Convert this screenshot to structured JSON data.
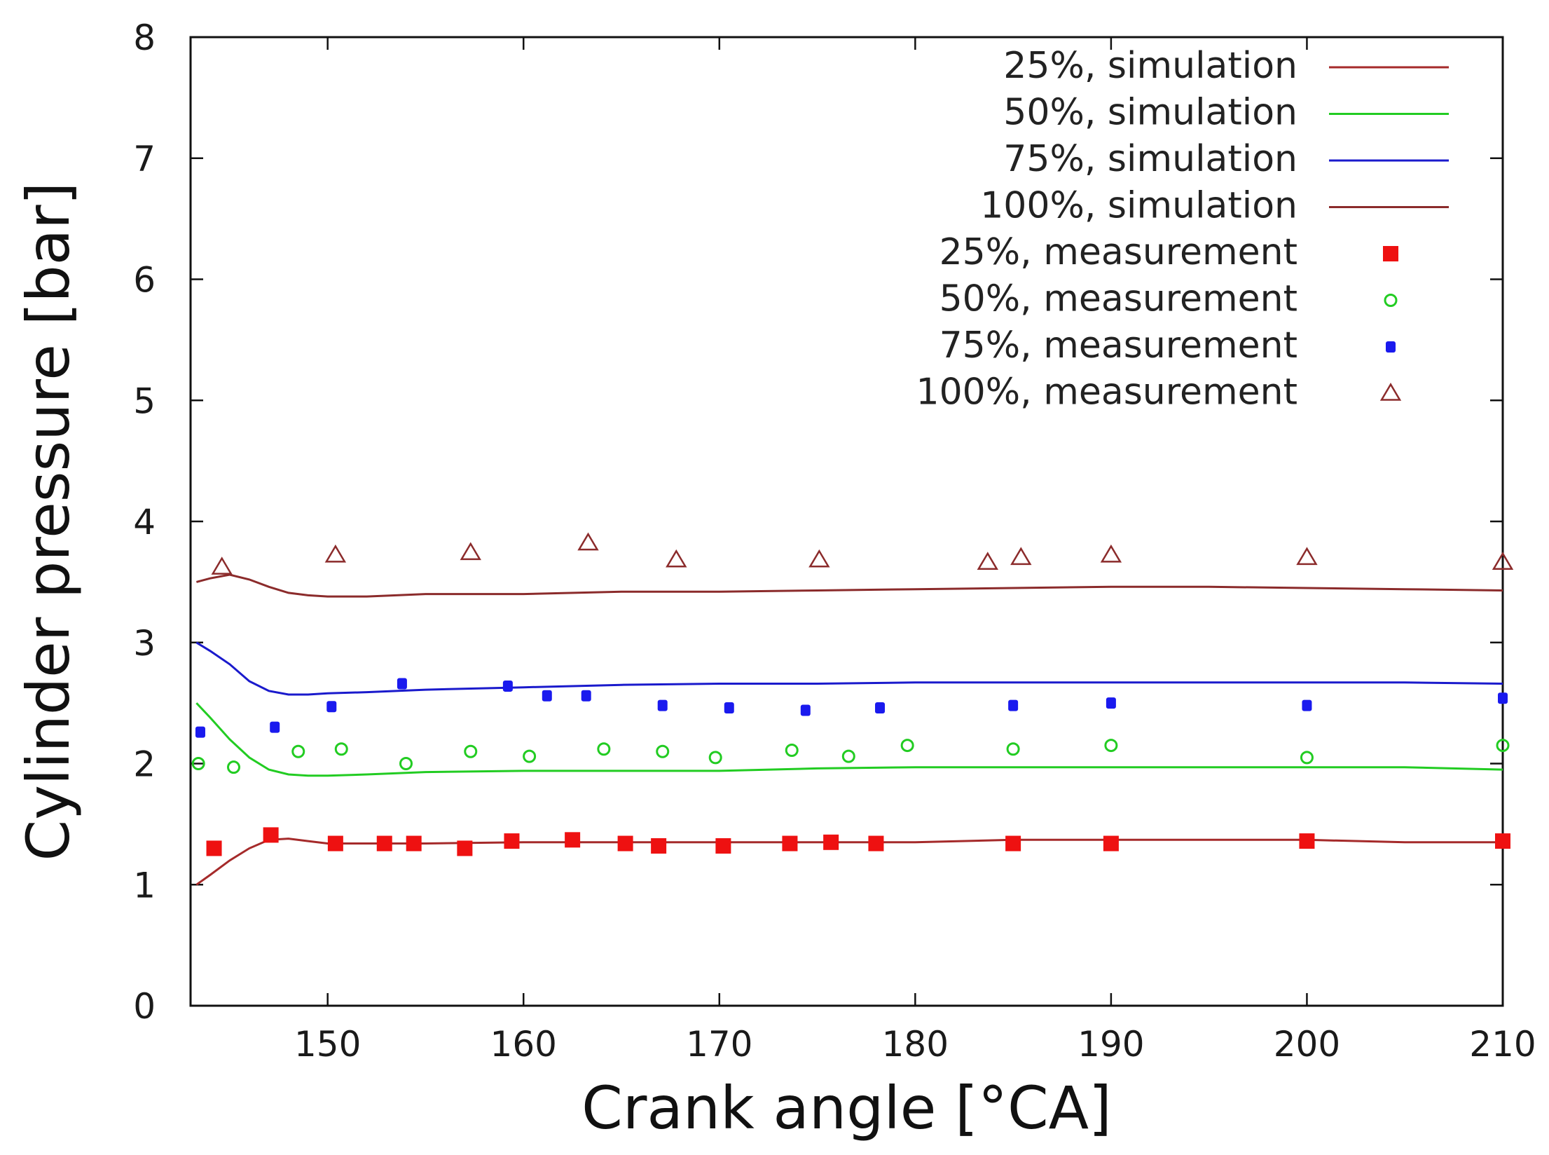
{
  "chart_data": {
    "type": "line",
    "title": "",
    "xlabel": "Crank angle [°CA]",
    "ylabel": "Cylinder pressure [bar]",
    "xlim": [
      143,
      210
    ],
    "ylim": [
      0,
      8
    ],
    "xticks": [
      150,
      160,
      170,
      180,
      190,
      200,
      210
    ],
    "yticks": [
      0,
      1,
      2,
      3,
      4,
      5,
      6,
      7,
      8
    ],
    "grid": false,
    "legend_position": "top-right",
    "colors": {
      "load25": "#a52a2a",
      "load50": "#22cc22",
      "load75": "#1a1acc",
      "load100": "#8b2b2b",
      "meas25": "#ee1111",
      "meas50": "#22cc22",
      "meas75": "#1a1aee",
      "meas100": "#8b2b2b"
    },
    "series": [
      {
        "name": "25%, simulation",
        "kind": "line",
        "color_key": "load25",
        "x": [
          143.3,
          144,
          145,
          146,
          147,
          148,
          149,
          150,
          152,
          155,
          160,
          165,
          170,
          175,
          180,
          185,
          190,
          195,
          200,
          205,
          210
        ],
        "y": [
          1.0,
          1.08,
          1.2,
          1.3,
          1.37,
          1.38,
          1.36,
          1.34,
          1.34,
          1.34,
          1.35,
          1.35,
          1.35,
          1.35,
          1.35,
          1.37,
          1.37,
          1.37,
          1.37,
          1.35,
          1.35
        ]
      },
      {
        "name": "50%, simulation",
        "kind": "line",
        "color_key": "load50",
        "x": [
          143.3,
          144,
          145,
          146,
          147,
          148,
          149,
          150,
          152,
          155,
          160,
          165,
          170,
          175,
          180,
          185,
          190,
          195,
          200,
          205,
          210
        ],
        "y": [
          2.5,
          2.38,
          2.2,
          2.05,
          1.95,
          1.91,
          1.9,
          1.9,
          1.91,
          1.93,
          1.94,
          1.94,
          1.94,
          1.96,
          1.97,
          1.97,
          1.97,
          1.97,
          1.97,
          1.97,
          1.95
        ]
      },
      {
        "name": "75%, simulation",
        "kind": "line",
        "color_key": "load75",
        "x": [
          143.3,
          144,
          145,
          146,
          147,
          148,
          149,
          150,
          152,
          155,
          160,
          165,
          170,
          175,
          180,
          185,
          190,
          195,
          200,
          205,
          210
        ],
        "y": [
          3.0,
          2.93,
          2.82,
          2.68,
          2.6,
          2.57,
          2.57,
          2.58,
          2.59,
          2.61,
          2.63,
          2.65,
          2.66,
          2.66,
          2.67,
          2.67,
          2.67,
          2.67,
          2.67,
          2.67,
          2.66
        ]
      },
      {
        "name": "100%, simulation",
        "kind": "line",
        "color_key": "load100",
        "x": [
          143.3,
          144,
          145,
          146,
          147,
          148,
          149,
          150,
          152,
          155,
          160,
          165,
          170,
          175,
          180,
          185,
          190,
          195,
          200,
          205,
          210
        ],
        "y": [
          3.5,
          3.53,
          3.56,
          3.52,
          3.46,
          3.41,
          3.39,
          3.38,
          3.38,
          3.4,
          3.4,
          3.42,
          3.42,
          3.43,
          3.44,
          3.45,
          3.46,
          3.46,
          3.45,
          3.44,
          3.43
        ]
      },
      {
        "name": "25%, measurement",
        "kind": "square",
        "color_key": "meas25",
        "x": [
          144.2,
          147.1,
          150.4,
          152.9,
          154.4,
          157,
          159.4,
          162.5,
          165.2,
          166.9,
          170.2,
          173.6,
          175.7,
          178,
          185,
          190,
          200,
          210
        ],
        "y": [
          1.3,
          1.41,
          1.34,
          1.34,
          1.34,
          1.3,
          1.36,
          1.37,
          1.34,
          1.32,
          1.32,
          1.34,
          1.35,
          1.34,
          1.34,
          1.34,
          1.36,
          1.36
        ]
      },
      {
        "name": "50%, measurement",
        "kind": "circle",
        "color_key": "meas50",
        "x": [
          143.4,
          145.2,
          148.5,
          150.7,
          154,
          157.3,
          160.3,
          164.1,
          167.1,
          169.8,
          173.7,
          176.6,
          179.6,
          185,
          190,
          200,
          210
        ],
        "y": [
          2.0,
          1.97,
          2.1,
          2.12,
          2.0,
          2.1,
          2.06,
          2.12,
          2.1,
          2.05,
          2.11,
          2.06,
          2.15,
          2.12,
          2.15,
          2.05,
          2.15
        ]
      },
      {
        "name": "75%, measurement",
        "kind": "dot",
        "color_key": "meas75",
        "x": [
          143.5,
          147.3,
          150.2,
          153.8,
          159.2,
          161.2,
          163.2,
          167.1,
          170.5,
          174.4,
          178.2,
          185,
          190,
          200,
          210
        ],
        "y": [
          2.26,
          2.3,
          2.47,
          2.66,
          2.64,
          2.56,
          2.56,
          2.48,
          2.46,
          2.44,
          2.46,
          2.48,
          2.5,
          2.48,
          2.54
        ]
      },
      {
        "name": "100%, measurement",
        "kind": "triangle",
        "color_key": "meas100",
        "x": [
          144.6,
          150.4,
          157.3,
          163.3,
          167.8,
          175.1,
          183.7,
          185.4,
          190,
          200,
          210
        ],
        "y": [
          3.62,
          3.72,
          3.74,
          3.82,
          3.68,
          3.68,
          3.66,
          3.7,
          3.72,
          3.7,
          3.66
        ]
      }
    ]
  }
}
